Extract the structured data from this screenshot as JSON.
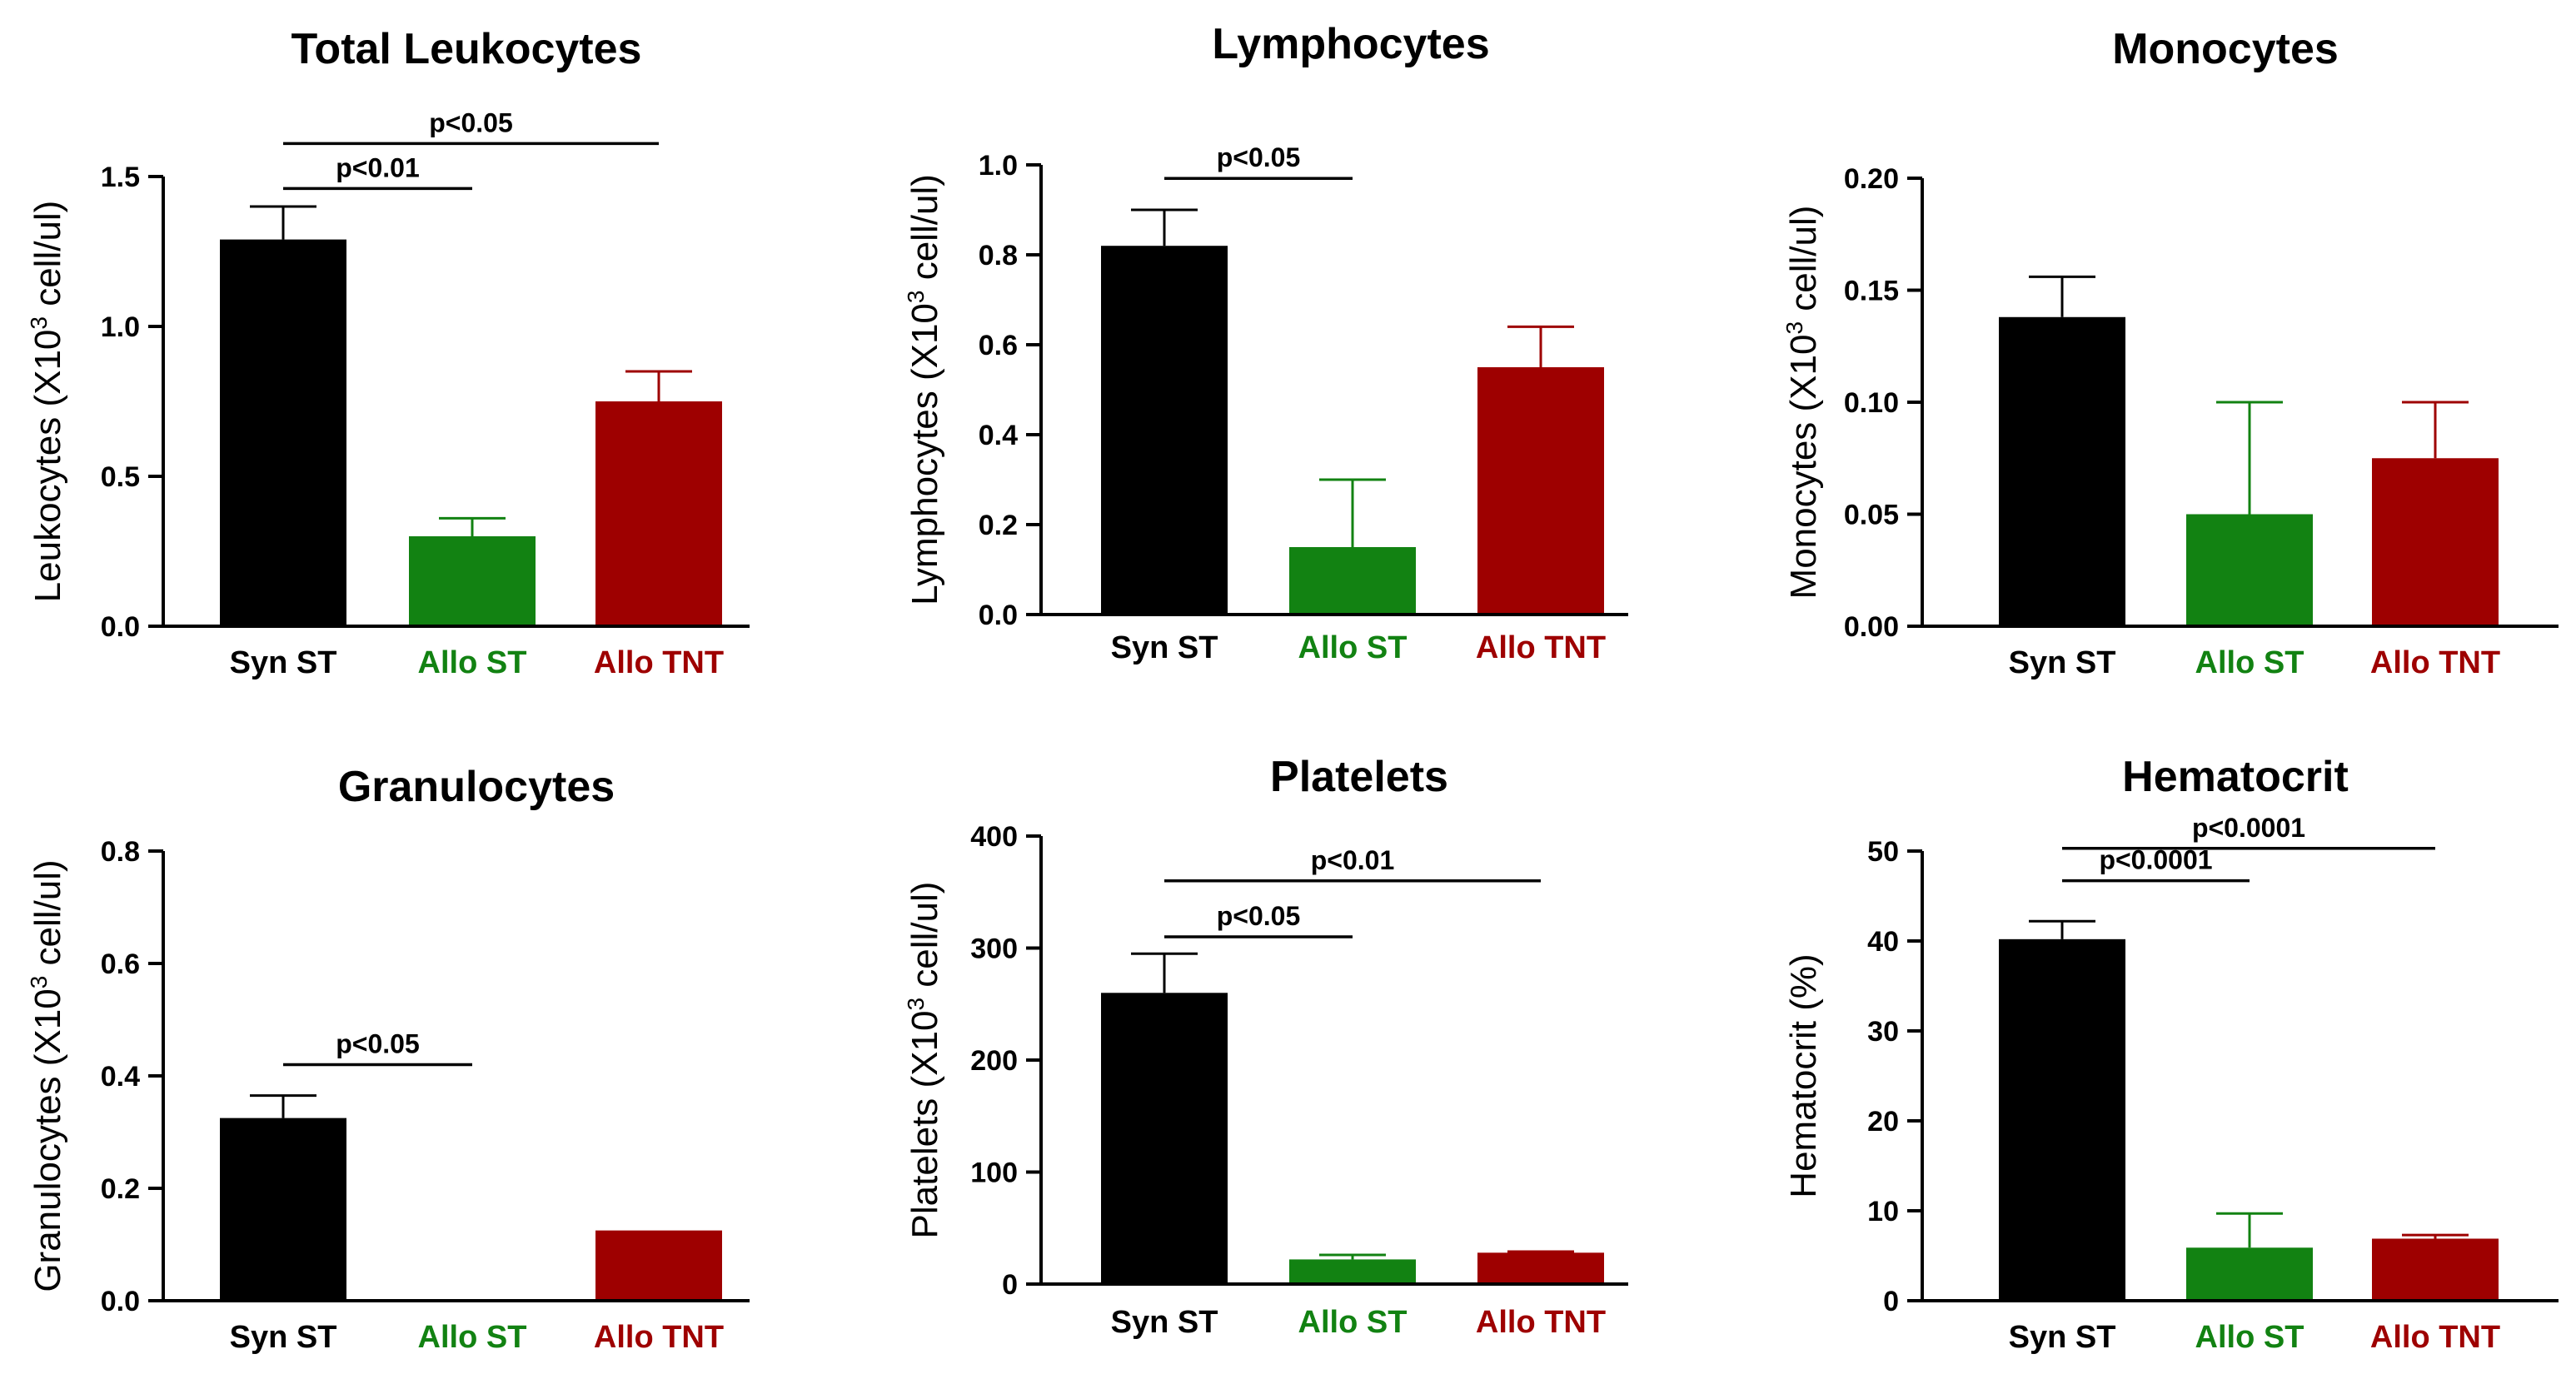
{
  "colors": {
    "syn": "#000000",
    "allo_st": "#128212",
    "allo_tnt": "#9e0000"
  },
  "chart_data": [
    {
      "type": "bar",
      "title": "Total Leukocytes",
      "ylabel": "Leukocytes (X10",
      "ylabel_sup": "3",
      "ylabel_tail": " cell/ul)",
      "categories": [
        "Syn ST",
        "Allo ST",
        "Allo TNT"
      ],
      "category_colors": [
        "syn",
        "allo_st",
        "allo_tnt"
      ],
      "values": [
        1.29,
        0.3,
        0.75
      ],
      "errors": [
        0.11,
        0.06,
        0.1
      ],
      "ylim": [
        0,
        1.5
      ],
      "yticks": [
        0.0,
        0.5,
        1.0,
        1.5
      ],
      "ytick_labels": [
        "0.0",
        "0.5",
        "1.0",
        "1.5"
      ],
      "comparisons": [
        {
          "from": 0,
          "to": 1,
          "label": "p<0.01",
          "y": 1.46
        },
        {
          "from": 0,
          "to": 2,
          "label": "p<0.05",
          "y": 1.61
        }
      ]
    },
    {
      "type": "bar",
      "title": "Lymphocytes",
      "ylabel": "Lymphocytes (X10",
      "ylabel_sup": "3",
      "ylabel_tail": " cell/ul)",
      "categories": [
        "Syn ST",
        "Allo ST",
        "Allo TNT"
      ],
      "category_colors": [
        "syn",
        "allo_st",
        "allo_tnt"
      ],
      "values": [
        0.82,
        0.15,
        0.55
      ],
      "errors": [
        0.08,
        0.15,
        0.09
      ],
      "ylim": [
        0,
        1.0
      ],
      "yticks": [
        0.0,
        0.2,
        0.4,
        0.6,
        0.8,
        1.0
      ],
      "ytick_labels": [
        "0.0",
        "0.2",
        "0.4",
        "0.6",
        "0.8",
        "1.0"
      ],
      "comparisons": [
        {
          "from": 0,
          "to": 1,
          "label": "p<0.05",
          "y": 0.97
        }
      ]
    },
    {
      "type": "bar",
      "title": "Monocytes",
      "ylabel": "Monocytes (X10",
      "ylabel_sup": "3",
      "ylabel_tail": " cell/ul)",
      "categories": [
        "Syn ST",
        "Allo ST",
        "Allo TNT"
      ],
      "category_colors": [
        "syn",
        "allo_st",
        "allo_tnt"
      ],
      "values": [
        0.138,
        0.05,
        0.075
      ],
      "errors": [
        0.018,
        0.05,
        0.025
      ],
      "ylim": [
        0,
        0.2
      ],
      "yticks": [
        0.0,
        0.05,
        0.1,
        0.15,
        0.2
      ],
      "ytick_labels": [
        "0.00",
        "0.05",
        "0.10",
        "0.15",
        "0.20"
      ],
      "comparisons": []
    },
    {
      "type": "bar",
      "title": "Granulocytes",
      "ylabel": "Granulocytes (X10",
      "ylabel_sup": "3",
      "ylabel_tail": " cell/ul)",
      "categories": [
        "Syn ST",
        "Allo ST",
        "Allo TNT"
      ],
      "category_colors": [
        "syn",
        "allo_st",
        "allo_tnt"
      ],
      "values": [
        0.325,
        0.0,
        0.125
      ],
      "errors": [
        0.04,
        0.0,
        0.0
      ],
      "ylim": [
        0,
        0.8
      ],
      "yticks": [
        0.0,
        0.2,
        0.4,
        0.6,
        0.8
      ],
      "ytick_labels": [
        "0.0",
        "0.2",
        "0.4",
        "0.6",
        "0.8"
      ],
      "comparisons": [
        {
          "from": 0,
          "to": 1,
          "label": "p<0.05",
          "y": 0.42
        }
      ]
    },
    {
      "type": "bar",
      "title": "Platelets",
      "ylabel": "Platelets (X10",
      "ylabel_sup": "3",
      "ylabel_tail": " cell/ul)",
      "categories": [
        "Syn ST",
        "Allo ST",
        "Allo TNT"
      ],
      "category_colors": [
        "syn",
        "allo_st",
        "allo_tnt"
      ],
      "values": [
        260,
        22,
        28
      ],
      "errors": [
        35,
        4,
        1
      ],
      "ylim": [
        0,
        400
      ],
      "yticks": [
        0,
        100,
        200,
        300,
        400
      ],
      "ytick_labels": [
        "0",
        "100",
        "200",
        "300",
        "400"
      ],
      "comparisons": [
        {
          "from": 0,
          "to": 1,
          "label": "p<0.05",
          "y": 310
        },
        {
          "from": 0,
          "to": 2,
          "label": "p<0.01",
          "y": 360
        }
      ]
    },
    {
      "type": "bar",
      "title": "Hematocrit",
      "ylabel": "Hematocrit (%)",
      "ylabel_sup": "",
      "ylabel_tail": "",
      "categories": [
        "Syn ST",
        "Allo ST",
        "Allo TNT"
      ],
      "category_colors": [
        "syn",
        "allo_st",
        "allo_tnt"
      ],
      "values": [
        40.2,
        5.9,
        6.9
      ],
      "errors": [
        2.0,
        3.8,
        0.4
      ],
      "ylim": [
        0,
        50
      ],
      "yticks": [
        0,
        10,
        20,
        30,
        40,
        50
      ],
      "ytick_labels": [
        "0",
        "10",
        "20",
        "30",
        "40",
        "50"
      ],
      "comparisons": [
        {
          "from": 0,
          "to": 1,
          "label": "p<0.0001",
          "y": 46.7
        },
        {
          "from": 0,
          "to": 2,
          "label": "p<0.0001",
          "y": 50.3
        }
      ]
    }
  ]
}
